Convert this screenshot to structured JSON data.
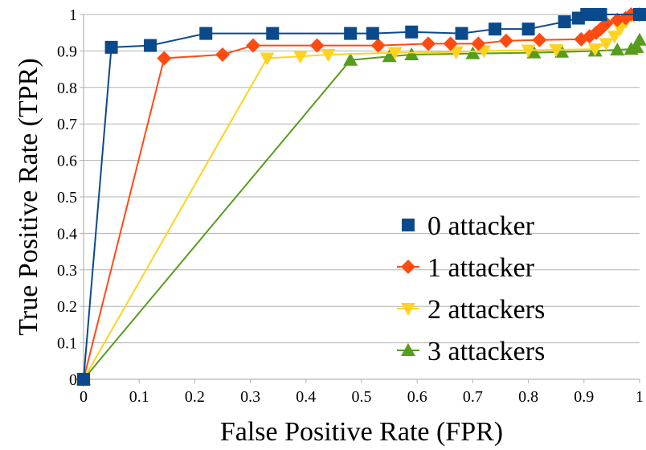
{
  "chart_data": {
    "type": "line",
    "title": "",
    "xlabel": "False Positive Rate (FPR)",
    "ylabel": "True Positive Rate (TPR)",
    "xlim": [
      0,
      1
    ],
    "ylim": [
      0,
      1
    ],
    "x_ticks": [
      "0",
      "0.1",
      "0.2",
      "0.3",
      "0.4",
      "0.5",
      "0.6",
      "0.7",
      "0.8",
      "0.9",
      "1"
    ],
    "y_ticks": [
      "0",
      "0.1",
      "0.2",
      "0.3",
      "0.4",
      "0.5",
      "0.6",
      "0.7",
      "0.8",
      "0.9",
      "1"
    ],
    "grid": "horizontal",
    "legend_position": "bottom-right",
    "series": [
      {
        "name": "0 attacker",
        "color": "#0a4a8c",
        "marker": "square",
        "points": [
          [
            0,
            0
          ],
          [
            0.05,
            0.91
          ],
          [
            0.12,
            0.915
          ],
          [
            0.22,
            0.948
          ],
          [
            0.34,
            0.948
          ],
          [
            0.48,
            0.948
          ],
          [
            0.52,
            0.948
          ],
          [
            0.59,
            0.952
          ],
          [
            0.68,
            0.948
          ],
          [
            0.74,
            0.96
          ],
          [
            0.8,
            0.96
          ],
          [
            0.865,
            0.98
          ],
          [
            0.89,
            0.99
          ],
          [
            0.905,
            1.0
          ],
          [
            0.915,
            1.0
          ],
          [
            0.93,
            1.0
          ],
          [
            1.0,
            1.0
          ]
        ]
      },
      {
        "name": "1 attacker",
        "color": "#ff4a12",
        "marker": "diamond",
        "points": [
          [
            0,
            0
          ],
          [
            0.145,
            0.88
          ],
          [
            0.25,
            0.89
          ],
          [
            0.305,
            0.915
          ],
          [
            0.42,
            0.915
          ],
          [
            0.53,
            0.915
          ],
          [
            0.62,
            0.92
          ],
          [
            0.66,
            0.92
          ],
          [
            0.71,
            0.92
          ],
          [
            0.76,
            0.928
          ],
          [
            0.82,
            0.93
          ],
          [
            0.895,
            0.932
          ],
          [
            0.91,
            0.94
          ],
          [
            0.922,
            0.95
          ],
          [
            0.93,
            0.96
          ],
          [
            0.94,
            0.975
          ],
          [
            0.96,
            0.985
          ],
          [
            0.975,
            0.99
          ],
          [
            0.985,
            1.0
          ],
          [
            1.0,
            1.0
          ]
        ]
      },
      {
        "name": "2 attackers",
        "color": "#ffd320",
        "marker": "triangle-down",
        "points": [
          [
            0,
            0
          ],
          [
            0.33,
            0.88
          ],
          [
            0.39,
            0.885
          ],
          [
            0.44,
            0.89
          ],
          [
            0.56,
            0.895
          ],
          [
            0.67,
            0.897
          ],
          [
            0.72,
            0.9
          ],
          [
            0.8,
            0.902
          ],
          [
            0.85,
            0.903
          ],
          [
            0.92,
            0.905
          ],
          [
            0.94,
            0.92
          ],
          [
            0.955,
            0.94
          ],
          [
            0.965,
            0.96
          ],
          [
            0.975,
            0.98
          ],
          [
            0.99,
            0.995
          ],
          [
            1.0,
            1.0
          ]
        ]
      },
      {
        "name": "3 attackers",
        "color": "#579d1c",
        "marker": "triangle-up",
        "points": [
          [
            0,
            0
          ],
          [
            0.48,
            0.875
          ],
          [
            0.55,
            0.885
          ],
          [
            0.59,
            0.89
          ],
          [
            0.7,
            0.893
          ],
          [
            0.81,
            0.895
          ],
          [
            0.86,
            0.897
          ],
          [
            0.92,
            0.9
          ],
          [
            0.96,
            0.903
          ],
          [
            0.985,
            0.905
          ],
          [
            0.995,
            0.91
          ],
          [
            1.0,
            0.93
          ]
        ]
      }
    ]
  }
}
